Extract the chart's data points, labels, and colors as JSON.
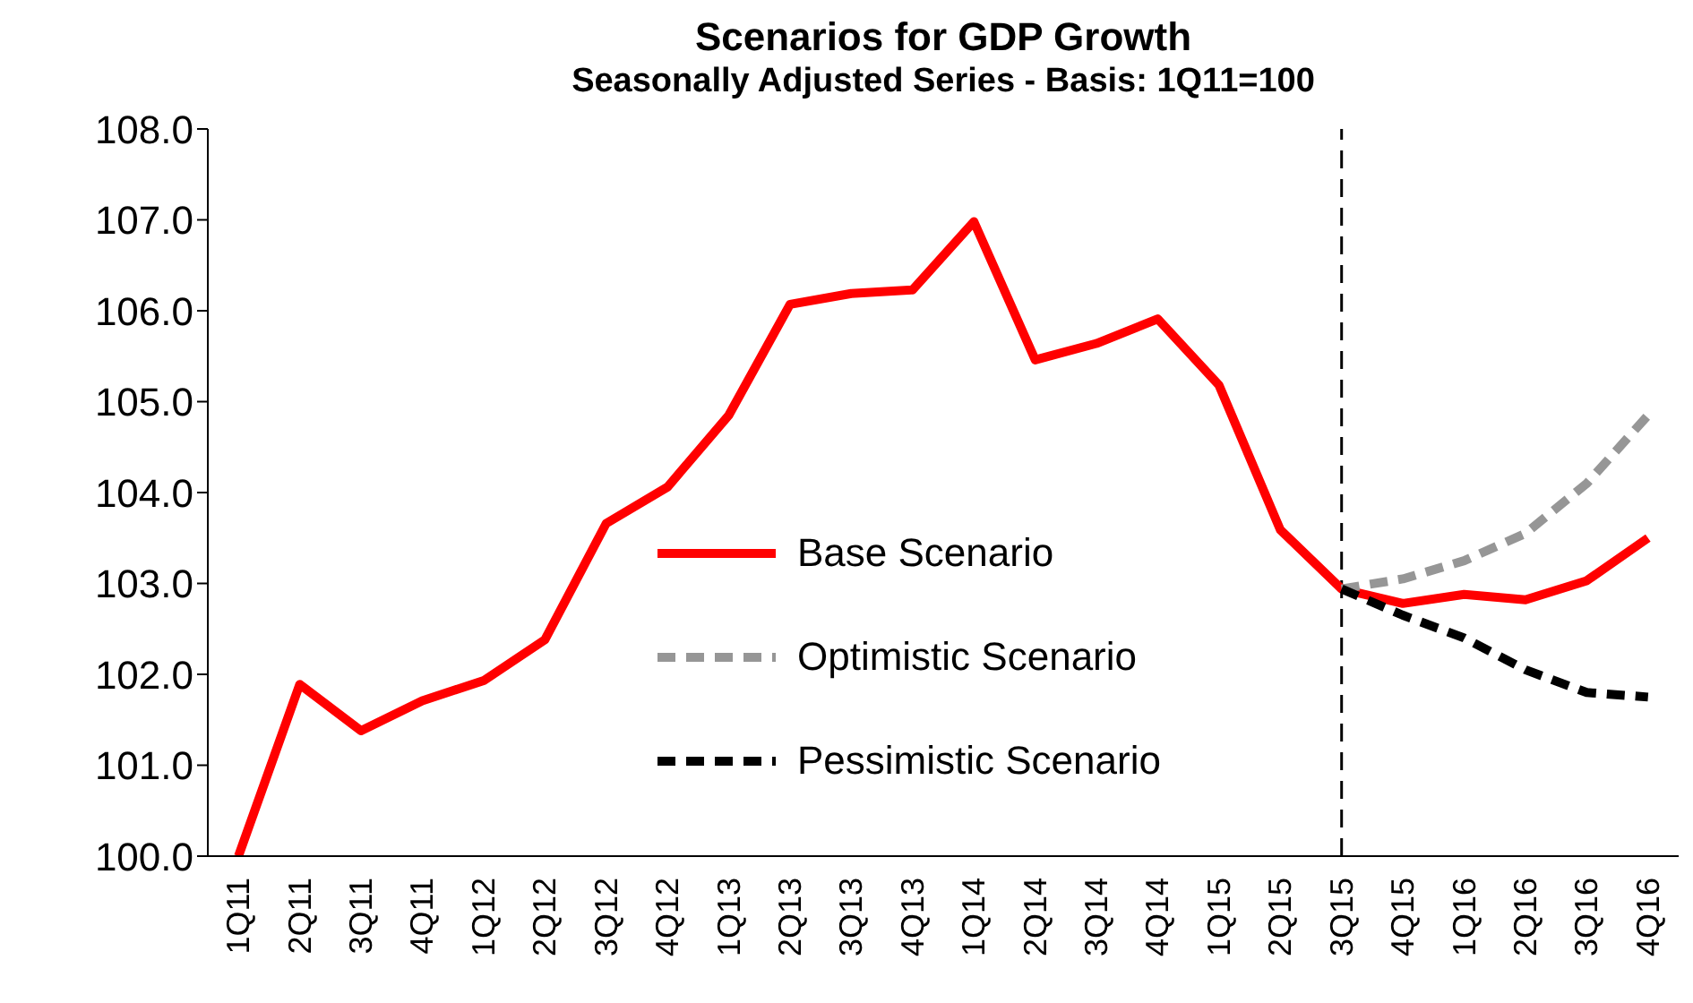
{
  "chart_data": {
    "type": "line",
    "title": "Scenarios for GDP Growth",
    "subtitle": "Seasonally Adjusted Series - Basis: 1Q11=100",
    "categories": [
      "1Q11",
      "2Q11",
      "3Q11",
      "4Q11",
      "1Q12",
      "2Q12",
      "3Q12",
      "4Q12",
      "1Q13",
      "2Q13",
      "3Q13",
      "4Q13",
      "1Q14",
      "2Q14",
      "3Q14",
      "4Q14",
      "1Q15",
      "2Q15",
      "3Q15",
      "4Q15",
      "1Q16",
      "2Q16",
      "3Q16",
      "4Q16"
    ],
    "series": [
      {
        "name": "Base Scenario",
        "color": "#ff0000",
        "line_style": "solid",
        "values": [
          100.0,
          101.89,
          101.38,
          101.71,
          101.93,
          102.38,
          103.66,
          104.06,
          104.85,
          106.07,
          106.19,
          106.23,
          106.98,
          105.46,
          105.64,
          105.91,
          105.18,
          103.59,
          102.94,
          102.78,
          102.88,
          102.82,
          103.03,
          103.5
        ]
      },
      {
        "name": "Optimistic Scenario",
        "color": "#969696",
        "line_style": "dashed",
        "values": [
          null,
          null,
          null,
          null,
          null,
          null,
          null,
          null,
          null,
          null,
          null,
          null,
          null,
          null,
          null,
          null,
          null,
          null,
          102.94,
          103.05,
          103.25,
          103.55,
          104.1,
          104.85
        ]
      },
      {
        "name": "Pessimistic Scenario",
        "color": "#000000",
        "line_style": "dashed",
        "values": [
          null,
          null,
          null,
          null,
          null,
          null,
          null,
          null,
          null,
          null,
          null,
          null,
          null,
          null,
          null,
          null,
          null,
          null,
          102.94,
          102.65,
          102.4,
          102.05,
          101.8,
          101.75
        ]
      }
    ],
    "ylim": [
      100,
      108
    ],
    "yticks": [
      {
        "value": 100,
        "label": "100.0"
      },
      {
        "value": 101,
        "label": "101.0"
      },
      {
        "value": 102,
        "label": "102.0"
      },
      {
        "value": 103,
        "label": "103.0"
      },
      {
        "value": 104,
        "label": "104.0"
      },
      {
        "value": 105,
        "label": "105.0"
      },
      {
        "value": 106,
        "label": "106.0"
      },
      {
        "value": 107,
        "label": "107.0"
      },
      {
        "value": 108,
        "label": "108.0"
      }
    ],
    "ref_lines": [
      {
        "axis": "x",
        "value": "3Q15",
        "color": "#000000",
        "line_style": "dashed"
      }
    ],
    "grid": false,
    "legend": "center",
    "marker": "none"
  }
}
